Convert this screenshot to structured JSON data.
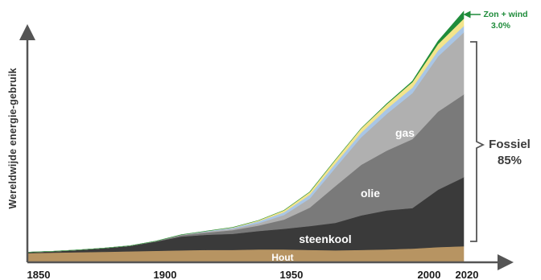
{
  "chart_data": {
    "type": "area",
    "stacked": true,
    "ylabel": "Wereldwijde energie-gebruik",
    "xlabel": "",
    "xlim": [
      1850,
      2020
    ],
    "ticks": [
      "1850",
      "1900",
      "1950",
      "2000",
      "2020"
    ],
    "grid": false,
    "x": [
      1850,
      1860,
      1870,
      1880,
      1890,
      1900,
      1910,
      1920,
      1930,
      1940,
      1950,
      1960,
      1970,
      1980,
      1990,
      2000,
      2010,
      2020
    ],
    "series": [
      {
        "name": "Hout",
        "label": "Hout",
        "color": "#b79462",
        "values": [
          20,
          21,
          22,
          23,
          24,
          25,
          26,
          27,
          27,
          28,
          28,
          27,
          26,
          27,
          28,
          30,
          33,
          35
        ]
      },
      {
        "name": "steenkool",
        "label": "steenkool",
        "color": "#3a3a3a",
        "values": [
          2,
          3,
          5,
          8,
          12,
          20,
          30,
          33,
          35,
          40,
          45,
          52,
          60,
          75,
          85,
          88,
          125,
          150
        ]
      },
      {
        "name": "olie",
        "label": "olie",
        "color": "#7a7a7a",
        "values": [
          0,
          0,
          0,
          0,
          0,
          1,
          3,
          5,
          8,
          12,
          20,
          40,
          80,
          110,
          130,
          150,
          170,
          180
        ]
      },
      {
        "name": "gas",
        "label": "gas",
        "color": "#b0b0b0",
        "values": [
          0,
          0,
          0,
          0,
          0,
          0,
          1,
          2,
          3,
          5,
          10,
          20,
          40,
          60,
          80,
          100,
          120,
          135
        ]
      },
      {
        "name": "",
        "label": "",
        "color": "#a9c6e6",
        "values": [
          0,
          0,
          0,
          0,
          0,
          0,
          0,
          1,
          2,
          4,
          6,
          8,
          9,
          10,
          11,
          12,
          13,
          14
        ]
      },
      {
        "name": "",
        "label": "",
        "color": "#f3e48c",
        "values": [
          0,
          0,
          0,
          0,
          0,
          0,
          0,
          0,
          1,
          2,
          4,
          6,
          8,
          9,
          10,
          12,
          14,
          16
        ]
      },
      {
        "name": "Zon + wind",
        "label": "",
        "color": "#1f8c3b",
        "values": [
          0,
          0,
          0,
          0,
          0,
          0,
          0,
          0,
          0,
          0,
          0,
          0,
          0,
          0,
          1,
          2,
          6,
          16
        ]
      }
    ],
    "annotations": {
      "fossiel": {
        "label": "Fossiel",
        "pct": "85%"
      },
      "zon_wind": {
        "label": "Zon + wind",
        "pct": "3.0%"
      }
    }
  }
}
